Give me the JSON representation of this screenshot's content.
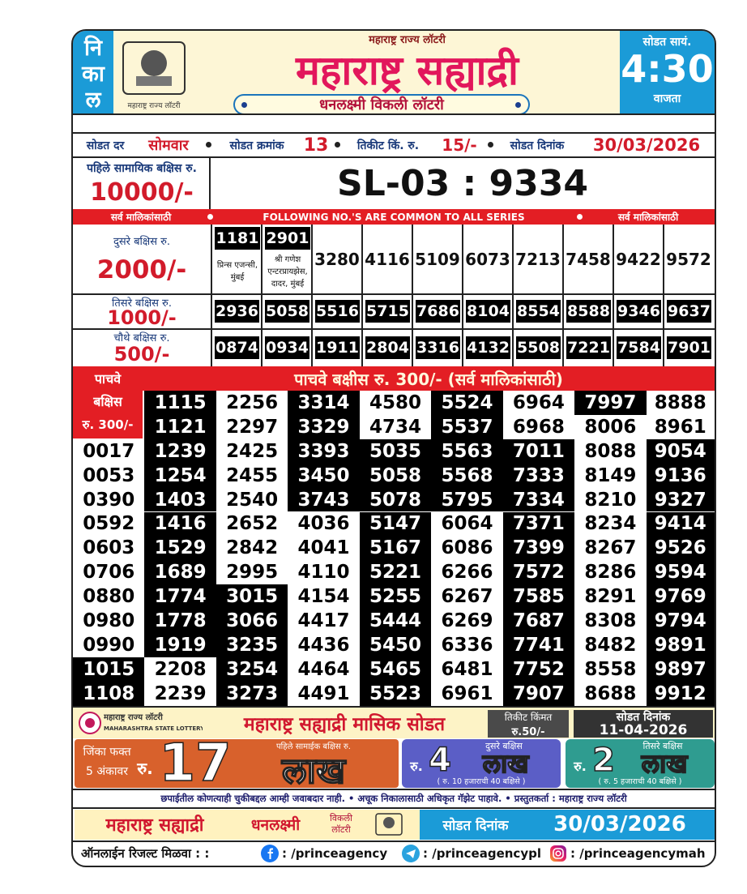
{
  "header": {
    "nikal": [
      "नि",
      "का",
      "ल"
    ],
    "logo_caption": "महाराष्ट्र राज्य लॉटरी",
    "top_label": "महाराष्ट्र राज्य लॉटरी",
    "title": "महाराष्ट्र सह्याद्री",
    "subtitle": "धनलक्ष्मी विकली लॉटरी",
    "draw_time_label": "सोडत सायं.",
    "draw_time": "4:30",
    "draw_time_suffix": "वाजता"
  },
  "info": {
    "day_label": "सोडत दर",
    "day": "सोमवार",
    "draw_no_label": "सोडत क्रमांक",
    "draw_no": "13",
    "price_label": "तिकीट किं. रु.",
    "price": "15/-",
    "date_label": "सोडत दिनांक",
    "date": "30/03/2026"
  },
  "first_prize": {
    "label": "पहिले सामायिक बक्षिस रु.",
    "amount": "10000/-",
    "number": "SL-03 : 9334"
  },
  "common_banner": {
    "left": "सर्व मालिकांसाठी",
    "center": "FOLLOWING NO.'S ARE COMMON TO ALL SERIES",
    "right": "सर्व मालिकांसाठी"
  },
  "prizes": [
    {
      "label": "दुसरे बक्षिस रु.",
      "amount": "2000/-",
      "numbers": [
        "1181",
        "2901",
        "3280",
        "4116",
        "5109",
        "6073",
        "7213",
        "7458",
        "9422",
        "9572"
      ],
      "agents": [
        "प्रिन्स एजन्सी, मुंबई",
        "श्री गणेश एन्टरप्रायझेस, दादर, मुंबई"
      ]
    },
    {
      "label": "तिसरे बक्षिस रु.",
      "amount": "1000/-",
      "numbers": [
        "2936",
        "5058",
        "5516",
        "5715",
        "7686",
        "8104",
        "8554",
        "8588",
        "9346",
        "9637"
      ]
    },
    {
      "label": "चौथे बक्षिस रु.",
      "amount": "500/-",
      "numbers": [
        "0874",
        "0934",
        "1911",
        "2804",
        "3316",
        "4132",
        "5508",
        "7221",
        "7584",
        "7901"
      ]
    }
  ],
  "fifth_prize": {
    "banner": "पाचवे बक्षीस रु. 300/- (सर्व मालिकांसाठी)",
    "label": [
      "पाचवे",
      "बक्षिस",
      "रु. 300/-"
    ],
    "columns": [
      [
        "0017",
        "0053",
        "0390",
        "0592",
        "0603",
        "0706",
        "0880",
        "0980",
        "0990",
        "1015",
        "1108"
      ],
      [
        "1115",
        "1121",
        "1239",
        "1254",
        "1403",
        "1416",
        "1529",
        "1689",
        "1774",
        "1778",
        "1919",
        "2208",
        "2239"
      ],
      [
        "2256",
        "2297",
        "2425",
        "2455",
        "2540",
        "2652",
        "2842",
        "2995",
        "3015",
        "3066",
        "3235",
        "3254",
        "3273"
      ],
      [
        "3314",
        "3329",
        "3393",
        "3450",
        "3743",
        "4036",
        "4041",
        "4110",
        "4154",
        "4417",
        "4436",
        "4464",
        "4491"
      ],
      [
        "4580",
        "4734",
        "5035",
        "5058",
        "5078",
        "5147",
        "5167",
        "5221",
        "5255",
        "5444",
        "5450",
        "5465",
        "5523"
      ],
      [
        "5524",
        "5537",
        "5563",
        "5568",
        "5795",
        "6064",
        "6086",
        "6266",
        "6267",
        "6269",
        "6336",
        "6481",
        "6961"
      ],
      [
        "6964",
        "6968",
        "7011",
        "7333",
        "7334",
        "7371",
        "7399",
        "7572",
        "7585",
        "7687",
        "7741",
        "7752",
        "7907"
      ],
      [
        "7997",
        "8006",
        "8088",
        "8149",
        "8210",
        "8234",
        "8267",
        "8286",
        "8291",
        "8308",
        "8482",
        "8558",
        "8688"
      ],
      [
        "8888",
        "8961",
        "9054",
        "9136",
        "9327",
        "9414",
        "9526",
        "9594",
        "9769",
        "9794",
        "9891",
        "9897",
        "9912"
      ]
    ]
  },
  "monthly": {
    "logo_name": "महाराष्ट्र राज्य लॉटरी",
    "logo_name_en": "MAHARASHTRA STATE LOTTERY",
    "title": "महाराष्ट्र सह्याद्री मासिक सोडत",
    "price_label": "तिकीट किंमत",
    "price": "रु.50/-",
    "date_label": "सोडत दिनांक",
    "date": "11-04-2026",
    "first": {
      "line1": "जिंका फक्त",
      "line2": "5 अंकावर",
      "currency": "रु.",
      "amount": "17",
      "label": "पहिले सामाईक बक्षिस रु.",
      "unit": "लाख"
    },
    "second": {
      "label": "दुसरे बक्षिस",
      "currency": "रु.",
      "amount": "4",
      "unit": "लाख",
      "note": "( रु. 10 हजाराची 40 बक्षिसे )"
    },
    "third": {
      "label": "तिसरे बक्षिस",
      "currency": "रु.",
      "amount": "2",
      "unit": "लाख",
      "note": "( रु. 5 हजाराची 40 बक्षिसे )"
    }
  },
  "disclaimer": "छपाईतील कोणत्याही चुकीबद्दल आम्ही जवाबदार नाही. • अचूक निकालासाठी अधिकृत गॅझेट पाहावे. • प्रस्तुतकर्ता : महाराष्ट्र राज्य लॉटरी",
  "footer": {
    "title": "महाराष्ट्र सह्याद्री",
    "name": "धनलक्ष्मी",
    "kind": "विकली लॉटरी",
    "date_label": "सोडत दिनांक",
    "date": "30/03/2026"
  },
  "social": {
    "label": "ऑनलाईन रिजल्ट मिळवा : :",
    "facebook": ": /princeagency",
    "telegram": ": /princeagencypl",
    "instagram": ": /princeagencymah"
  }
}
